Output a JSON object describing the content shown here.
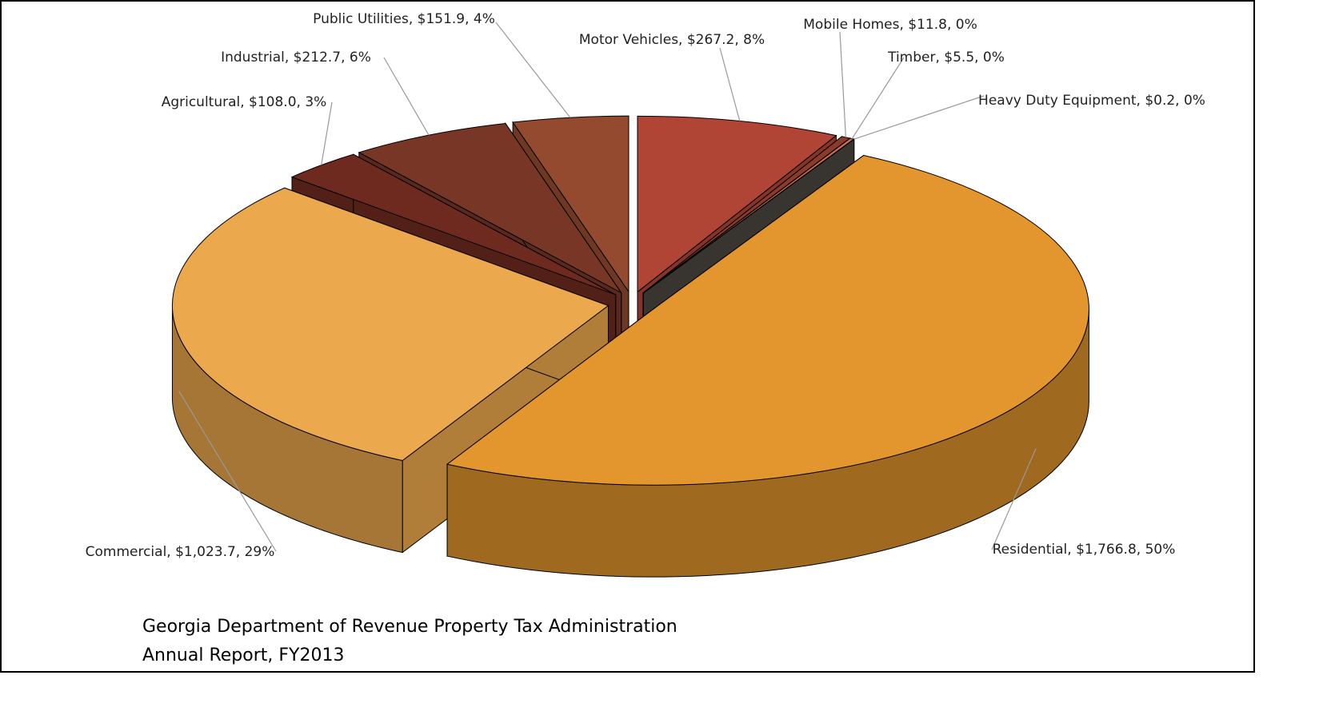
{
  "chart_data": {
    "type": "pie3d",
    "labels": [
      "Motor Vehicles, $267.2, 8%",
      "Mobile Homes, $11.8, 0%",
      "Timber, $5.5, 0%",
      "Heavy Duty Equipment, $0.2, 0%",
      "Residential, $1,766.8, 50%",
      "Commercial, $1,023.7, 29%",
      "Agricultural, $108.0, 3%",
      "Industrial, $212.7, 6%",
      "Public Utilities, $151.9, 4%"
    ],
    "values": [
      267.2,
      11.8,
      5.5,
      0.2,
      1766.8,
      1023.7,
      108.0,
      212.7,
      151.9
    ],
    "colors": [
      "#b04535",
      "#8c3a2a",
      "#d06a50",
      "#4a4540",
      "#e3962e",
      "#eba84c",
      "#6e2a1e",
      "#773626",
      "#934a2e"
    ],
    "caption": [
      "Georgia Department of Revenue Property Tax Administration",
      "Annual Report, FY2013"
    ]
  }
}
